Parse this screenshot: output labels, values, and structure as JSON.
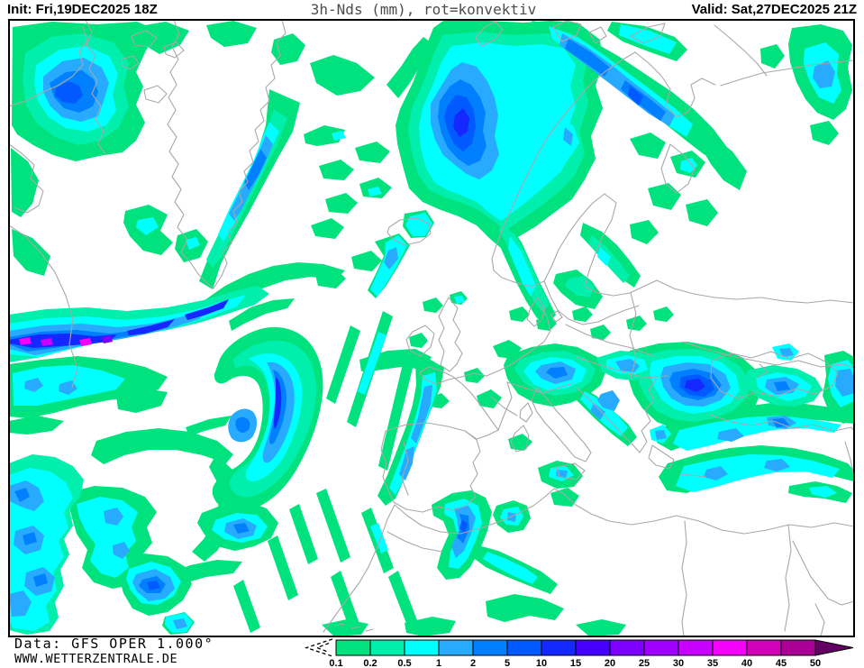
{
  "header": {
    "init": "Init: Fri,19DEC2025 18Z",
    "title": "3h-Nds (mm), rot=konvektiv",
    "valid": "Valid: Sat,27DEC2025 21Z"
  },
  "footer": {
    "data_source": "Data: GFS OPER 1.000°",
    "website": "WWW.WETTERZENTRALE.DE"
  },
  "map": {
    "background": "#FFFFFF",
    "coastline_color": "#A8A8A8",
    "frame_color": "#000000"
  },
  "legend": {
    "unit": "mm",
    "cells": [
      {
        "label": "0.1",
        "color": "#00E27D"
      },
      {
        "label": "0.2",
        "color": "#00EFAC"
      },
      {
        "label": "0.5",
        "color": "#00FFFF"
      },
      {
        "label": "1",
        "color": "#28AAFF"
      },
      {
        "label": "2",
        "color": "#0080FF"
      },
      {
        "label": "5",
        "color": "#005AFF"
      },
      {
        "label": "10",
        "color": "#1428FF"
      },
      {
        "label": "15",
        "color": "#4600FF"
      },
      {
        "label": "20",
        "color": "#7D00FF"
      },
      {
        "label": "25",
        "color": "#A000FF"
      },
      {
        "label": "30",
        "color": "#C800FF"
      },
      {
        "label": "35",
        "color": "#F500FA"
      },
      {
        "label": "40",
        "color": "#D200B9"
      },
      {
        "label": "45",
        "color": "#AA0096"
      }
    ],
    "max_label": "50",
    "overflow_color": "#640064"
  }
}
